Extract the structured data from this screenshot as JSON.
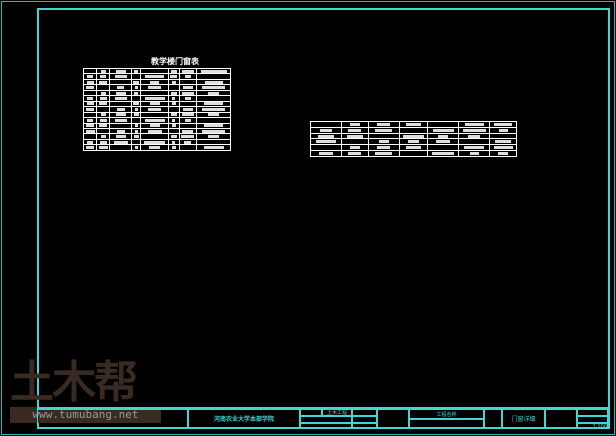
{
  "colors": {
    "frame": "#3fd6d6",
    "table_lines": "#ffffff",
    "watermark": "#3a2b22"
  },
  "door_window_table": {
    "title": "教学楼门窗表",
    "rows": 15,
    "cols": 8
  },
  "detail_table": {
    "rows": 6,
    "cols": 7
  },
  "title_block": {
    "school": "河南农业大学本部学院",
    "major": "土木工程",
    "project_label": "工程名称",
    "drawing_name": "门窗详细",
    "scale": "1:100"
  },
  "watermark": {
    "logo": "土木帮",
    "url": "www.tumubang.net"
  }
}
